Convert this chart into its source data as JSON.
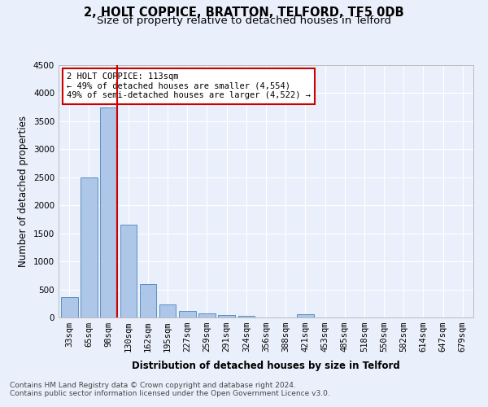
{
  "title": "2, HOLT COPPICE, BRATTON, TELFORD, TF5 0DB",
  "subtitle": "Size of property relative to detached houses in Telford",
  "xlabel": "Distribution of detached houses by size in Telford",
  "ylabel": "Number of detached properties",
  "categories": [
    "33sqm",
    "65sqm",
    "98sqm",
    "130sqm",
    "162sqm",
    "195sqm",
    "227sqm",
    "259sqm",
    "291sqm",
    "324sqm",
    "356sqm",
    "388sqm",
    "421sqm",
    "453sqm",
    "485sqm",
    "518sqm",
    "550sqm",
    "582sqm",
    "614sqm",
    "647sqm",
    "679sqm"
  ],
  "values": [
    370,
    2500,
    3750,
    1650,
    590,
    230,
    110,
    70,
    45,
    35,
    0,
    0,
    55,
    0,
    0,
    0,
    0,
    0,
    0,
    0,
    0
  ],
  "bar_color": "#aec6e8",
  "bar_edge_color": "#5a8fc4",
  "vline_color": "#cc0000",
  "annotation_text": "2 HOLT COPPICE: 113sqm\n← 49% of detached houses are smaller (4,554)\n49% of semi-detached houses are larger (4,522) →",
  "annotation_box_color": "#ffffff",
  "annotation_box_edge_color": "#cc0000",
  "ylim": [
    0,
    4500
  ],
  "yticks": [
    0,
    500,
    1000,
    1500,
    2000,
    2500,
    3000,
    3500,
    4000,
    4500
  ],
  "bg_color": "#eaf0fb",
  "plot_bg_color": "#eaf0fb",
  "grid_color": "#ffffff",
  "footer1": "Contains HM Land Registry data © Crown copyright and database right 2024.",
  "footer2": "Contains public sector information licensed under the Open Government Licence v3.0.",
  "title_fontsize": 10.5,
  "subtitle_fontsize": 9.5,
  "axis_label_fontsize": 8.5,
  "tick_fontsize": 7.5,
  "footer_fontsize": 6.5
}
